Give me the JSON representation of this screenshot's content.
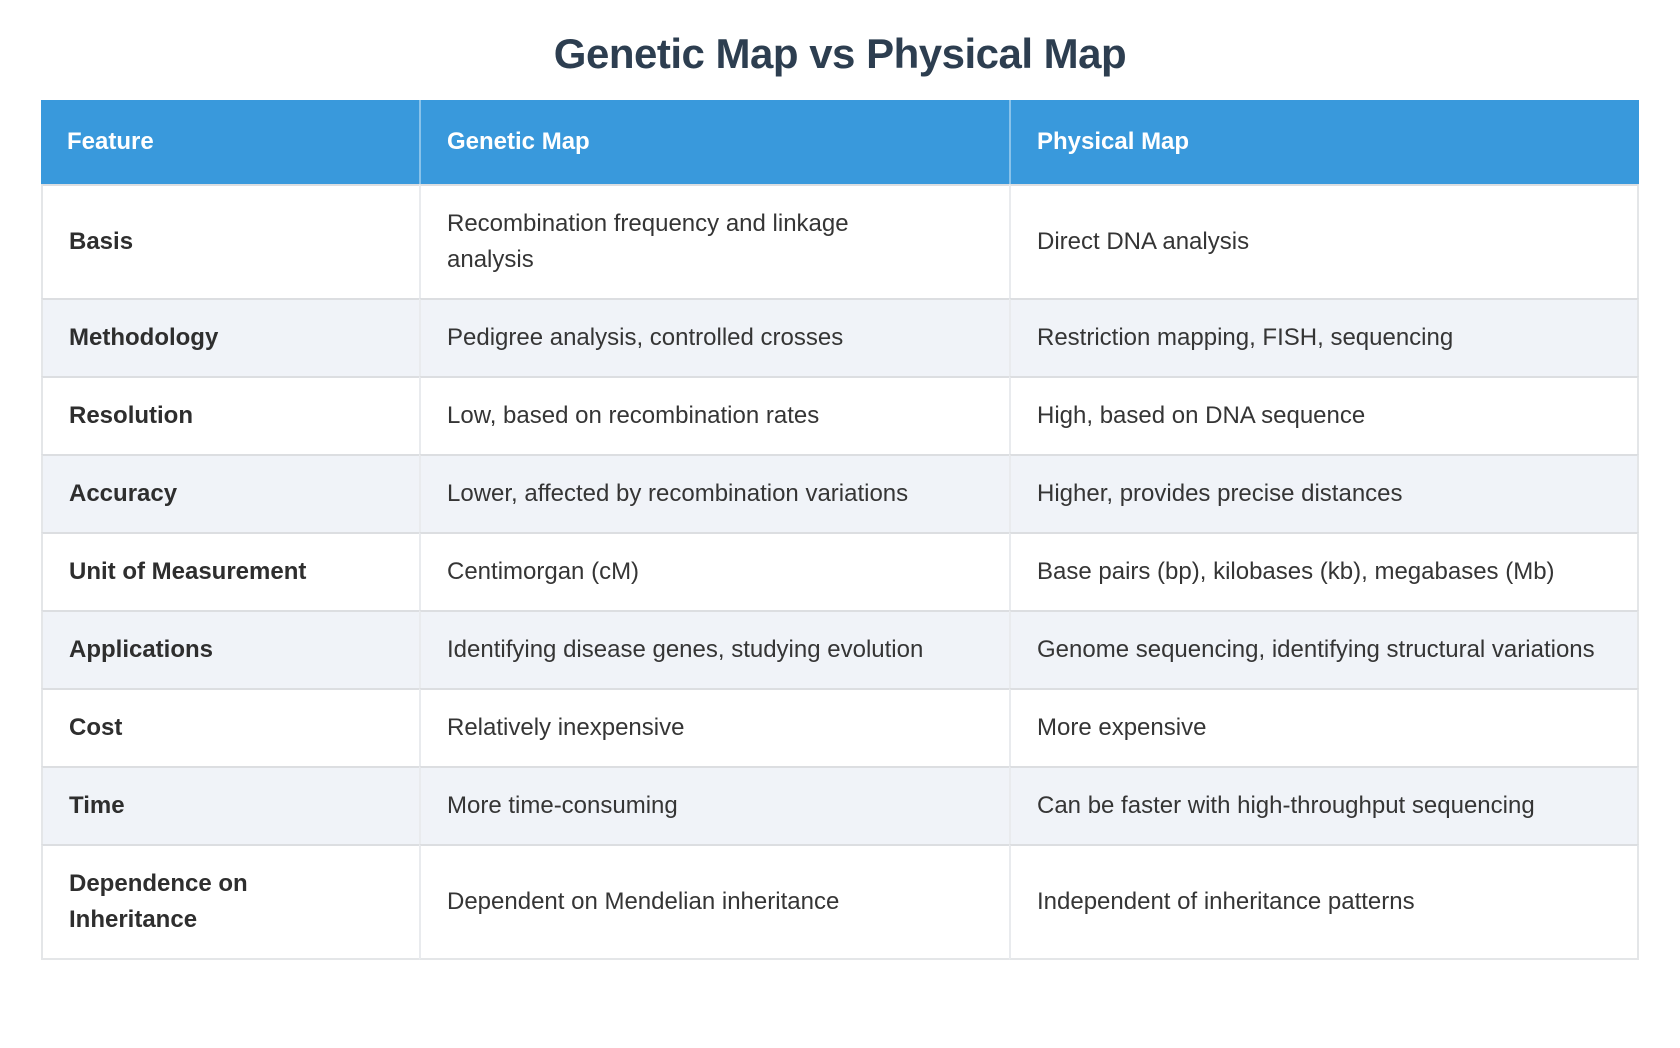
{
  "page": {
    "title": "Genetic Map vs Physical Map"
  },
  "colors": {
    "header_bg": "#3999dc",
    "header_text": "#ffffff",
    "title_text": "#2d3e50",
    "stripe_bg": "#f0f3f8",
    "body_text": "#353535",
    "border": "#dcdee1"
  },
  "table": {
    "columns": [
      "Feature",
      "Genetic Map",
      "Physical Map"
    ],
    "rows": [
      {
        "feature": "Basis",
        "genetic": "Recombination frequency and linkage analysis",
        "physical": "Direct DNA analysis"
      },
      {
        "feature": "Methodology",
        "genetic": "Pedigree analysis, controlled crosses",
        "physical": "Restriction mapping, FISH, sequencing"
      },
      {
        "feature": "Resolution",
        "genetic": "Low, based on recombination rates",
        "physical": "High, based on DNA sequence"
      },
      {
        "feature": "Accuracy",
        "genetic": "Lower, affected by recombination variations",
        "physical": "Higher, provides precise distances"
      },
      {
        "feature": "Unit of Measurement",
        "genetic": "Centimorgan (cM)",
        "physical": "Base pairs (bp), kilobases (kb), megabases (Mb)"
      },
      {
        "feature": "Applications",
        "genetic": "Identifying disease genes, studying evolution",
        "physical": "Genome sequencing, identifying structural variations"
      },
      {
        "feature": "Cost",
        "genetic": "Relatively inexpensive",
        "physical": "More expensive"
      },
      {
        "feature": "Time",
        "genetic": "More time-consuming",
        "physical": "Can be faster with high-throughput sequencing"
      },
      {
        "feature": "Dependence on Inheritance",
        "genetic": "Dependent on Mendelian inheritance",
        "physical": "Independent of inheritance patterns"
      }
    ]
  }
}
